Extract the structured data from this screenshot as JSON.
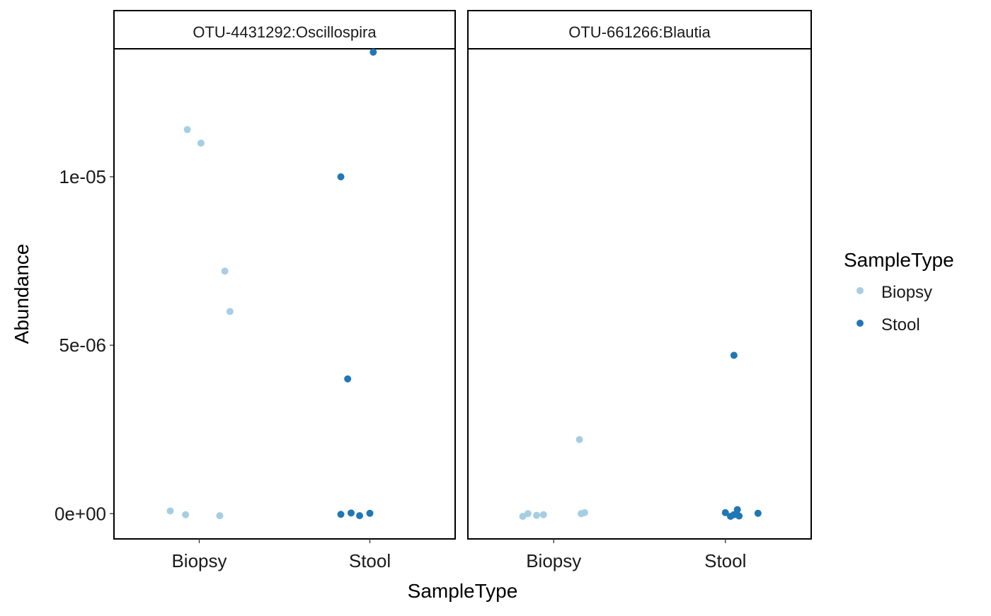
{
  "chart_data": {
    "type": "scatter",
    "facet_by": "OTU",
    "xlabel": "SampleType",
    "ylabel": "Abundance",
    "categories": [
      "Biopsy",
      "Stool"
    ],
    "y_ticks": [
      0,
      5e-06,
      1e-05
    ],
    "y_tick_labels": [
      "0e+00",
      "5e-06",
      "1e-05"
    ],
    "ylim": [
      -7.5e-07,
      1.38e-05
    ],
    "legend": {
      "title": "SampleType",
      "position": "right",
      "entries": [
        {
          "label": "Biopsy",
          "color": "#a6cee3"
        },
        {
          "label": "Stool",
          "color": "#1f78b4"
        }
      ]
    },
    "panels": [
      {
        "title": "OTU-4431292:Oscillospira",
        "points": [
          {
            "group": "Biopsy",
            "jitter": -0.07,
            "y": 1.14e-05
          },
          {
            "group": "Biopsy",
            "jitter": 0.01,
            "y": 1.1e-05
          },
          {
            "group": "Biopsy",
            "jitter": 0.15,
            "y": 7.2e-06
          },
          {
            "group": "Biopsy",
            "jitter": 0.18,
            "y": 6e-06
          },
          {
            "group": "Biopsy",
            "jitter": -0.17,
            "y": 8e-08
          },
          {
            "group": "Biopsy",
            "jitter": -0.08,
            "y": -3e-08
          },
          {
            "group": "Biopsy",
            "jitter": 0.12,
            "y": -6e-08
          },
          {
            "group": "Stool",
            "jitter": 0.02,
            "y": 1.37e-05
          },
          {
            "group": "Stool",
            "jitter": -0.17,
            "y": 1e-05
          },
          {
            "group": "Stool",
            "jitter": -0.13,
            "y": 4e-06
          },
          {
            "group": "Stool",
            "jitter": -0.17,
            "y": -2e-08
          },
          {
            "group": "Stool",
            "jitter": -0.11,
            "y": 2e-08
          },
          {
            "group": "Stool",
            "jitter": -0.06,
            "y": -6e-08
          },
          {
            "group": "Stool",
            "jitter": 0,
            "y": 1e-08
          }
        ]
      },
      {
        "title": "OTU-661266:Blautia",
        "points": [
          {
            "group": "Biopsy",
            "jitter": 0.15,
            "y": 2.2e-06
          },
          {
            "group": "Biopsy",
            "jitter": -0.18,
            "y": -8e-08
          },
          {
            "group": "Biopsy",
            "jitter": -0.15,
            "y": 0
          },
          {
            "group": "Biopsy",
            "jitter": -0.1,
            "y": -5e-08
          },
          {
            "group": "Biopsy",
            "jitter": -0.06,
            "y": -3e-08
          },
          {
            "group": "Biopsy",
            "jitter": 0.16,
            "y": 0
          },
          {
            "group": "Biopsy",
            "jitter": 0.18,
            "y": 3e-08
          },
          {
            "group": "Stool",
            "jitter": 0.05,
            "y": 4.7e-06
          },
          {
            "group": "Stool",
            "jitter": 0,
            "y": 3e-08
          },
          {
            "group": "Stool",
            "jitter": 0.03,
            "y": -8e-08
          },
          {
            "group": "Stool",
            "jitter": 0.07,
            "y": 1.2e-07
          },
          {
            "group": "Stool",
            "jitter": 0.08,
            "y": -7e-08
          },
          {
            "group": "Stool",
            "jitter": 0.05,
            "y": -3e-08
          },
          {
            "group": "Stool",
            "jitter": 0.19,
            "y": 1e-08
          }
        ]
      }
    ]
  }
}
